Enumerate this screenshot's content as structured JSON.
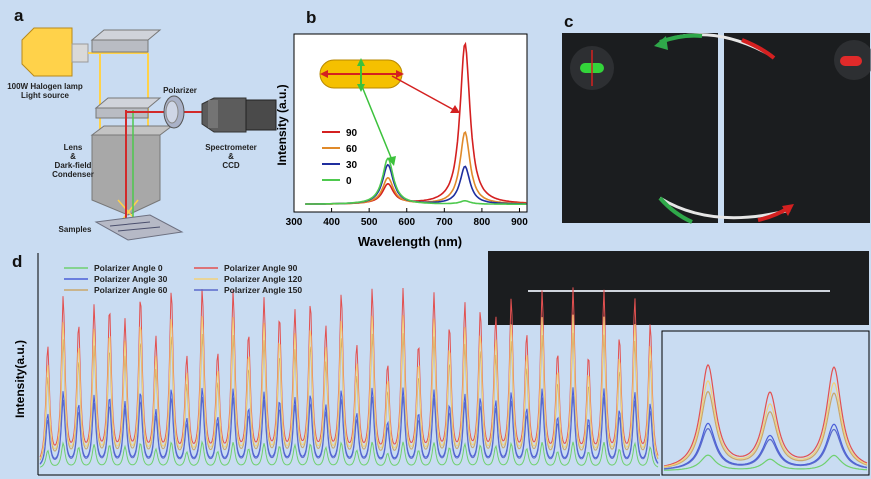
{
  "figure": {
    "panel_labels": [
      "a",
      "b",
      "c",
      "d"
    ]
  },
  "panel_a": {
    "light_source": [
      "100W Halogen lamp",
      "Light source"
    ],
    "polarizer": "Polarizer",
    "lens": [
      "Lens",
      "&",
      "Dark-field",
      "Condenser"
    ],
    "spectrometer": [
      "Spectrometer",
      "&",
      "CCD"
    ],
    "samples": "Samples"
  },
  "chart_data": [
    {
      "panel": "b",
      "type": "line",
      "xlabel": "Wavelength (nm)",
      "ylabel": "Intensity (a.u.)",
      "xlim": [
        300,
        920
      ],
      "ylim": [
        0,
        1.0
      ],
      "xticks": [
        300,
        400,
        500,
        600,
        700,
        800,
        900
      ],
      "legend_position": "left",
      "grid": false,
      "series": [
        {
          "name": "90",
          "color": "#d42020",
          "peaks": [
            {
              "center": 550,
              "height": 0.12,
              "width": 35
            },
            {
              "center": 755,
              "height": 0.98,
              "width": 32
            }
          ]
        },
        {
          "name": "60",
          "color": "#e08a2a",
          "peaks": [
            {
              "center": 550,
              "height": 0.16,
              "width": 35
            },
            {
              "center": 755,
              "height": 0.44,
              "width": 32
            }
          ]
        },
        {
          "name": "30",
          "color": "#1f2e9e",
          "peaks": [
            {
              "center": 550,
              "height": 0.24,
              "width": 35
            },
            {
              "center": 755,
              "height": 0.23,
              "width": 32
            }
          ]
        },
        {
          "name": "0",
          "color": "#4ec94e",
          "peaks": [
            {
              "center": 550,
              "height": 0.28,
              "width": 35
            },
            {
              "center": 755,
              "height": 0.02,
              "width": 32
            }
          ]
        }
      ]
    },
    {
      "panel": "d",
      "type": "line",
      "ylabel": "Intensity(a.u.)",
      "xlabel": "",
      "legend_position": "top-left",
      "grid": false,
      "peak_count": 40,
      "series": [
        {
          "name": "Polarizer Angle 0",
          "color": "#6fd06f",
          "relative": 0.15
        },
        {
          "name": "Polarizer Angle 30",
          "color": "#4a5ed8",
          "relative": 0.45
        },
        {
          "name": "Polarizer Angle 60",
          "color": "#c9a66a",
          "relative": 0.75
        },
        {
          "name": "Polarizer Angle 90",
          "color": "#e25050",
          "relative": 1.0
        },
        {
          "name": "Polarizer Angle 120",
          "color": "#f3d27a",
          "relative": 0.85
        },
        {
          "name": "Polarizer Angle 150",
          "color": "#5a6acb",
          "relative": 0.4
        }
      ]
    }
  ],
  "colors": {
    "background": "#c9dcf2",
    "dark_panel": "#1b1d1f",
    "rod_gold": "#f5c000"
  }
}
